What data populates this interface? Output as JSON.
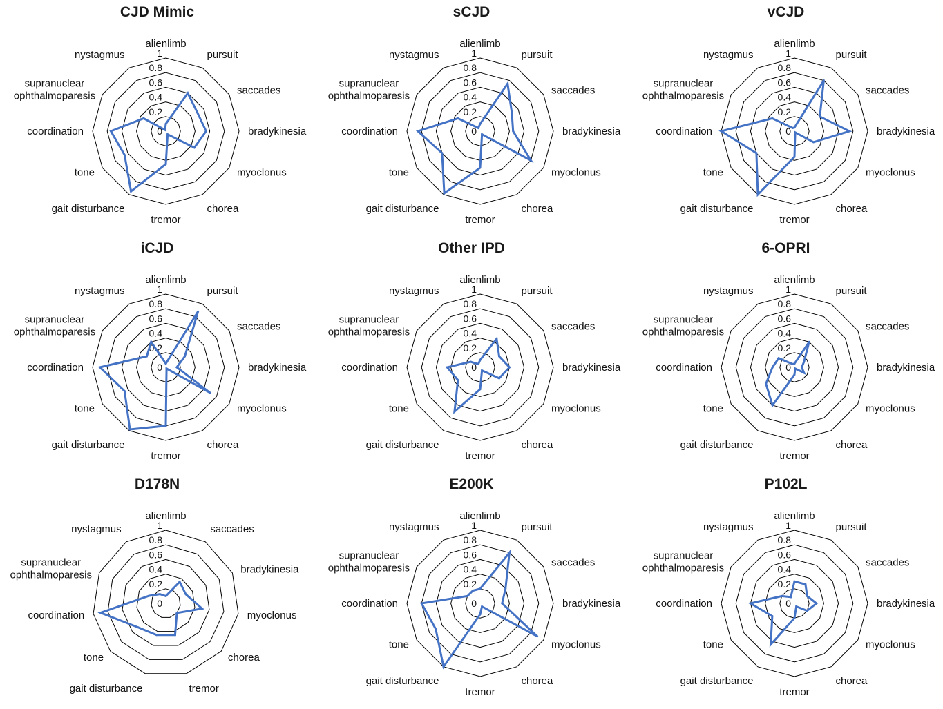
{
  "style": {
    "grid_color": "#000000",
    "series_color": "#4472C4"
  },
  "chart_data": [
    {
      "type": "radar",
      "title": "CJD Mimic",
      "axes": [
        "alienlimb",
        "pursuit",
        "saccades",
        "bradykinesia",
        "myoclonus",
        "chorea",
        "tremor",
        "gait disturbance",
        "tone",
        "coordination",
        "supranuclear ophthalmoparesis",
        "nystagmus"
      ],
      "values": [
        0.1,
        0.6,
        0.5,
        0.55,
        0.45,
        0.05,
        0.45,
        0.95,
        0.65,
        0.75,
        0.35,
        0.02
      ],
      "ticks": [
        "0",
        "0.2",
        "0.4",
        "0.6",
        "0.8",
        "1"
      ],
      "ylim": [
        0,
        1
      ],
      "grid": "12-sided polygons"
    },
    {
      "type": "radar",
      "title": "sCJD",
      "axes": [
        "alienlimb",
        "pursuit",
        "saccades",
        "bradykinesia",
        "myoclonus",
        "chorea",
        "tremor",
        "gait disturbance",
        "tone",
        "coordination",
        "supranuclear ophthalmoparesis",
        "nystagmus"
      ],
      "values": [
        0.1,
        0.75,
        0.5,
        0.45,
        0.8,
        0.05,
        0.5,
        0.98,
        0.6,
        0.85,
        0.35,
        0.05
      ],
      "ticks": [
        "0",
        "0.2",
        "0.4",
        "0.6",
        "0.8",
        "1"
      ],
      "ylim": [
        0,
        1
      ],
      "grid": "12-sided polygons"
    },
    {
      "type": "radar",
      "title": "vCJD",
      "axes": [
        "alienlimb",
        "pursuit",
        "saccades",
        "bradykinesia",
        "myoclonus",
        "chorea",
        "tremor",
        "gait disturbance",
        "tone",
        "coordination",
        "supranuclear ophthalmoparesis",
        "nystagmus"
      ],
      "values": [
        0.05,
        0.8,
        0.4,
        0.75,
        0.3,
        0.02,
        0.35,
        1.0,
        0.6,
        1.0,
        0.35,
        0.05
      ],
      "ticks": [
        "0",
        "0.2",
        "0.4",
        "0.6",
        "0.8",
        "1"
      ],
      "ylim": [
        0,
        1
      ],
      "grid": "12-sided polygons"
    },
    {
      "type": "radar",
      "title": "iCJD",
      "axes": [
        "alienlimb",
        "pursuit",
        "saccades",
        "bradykinesia",
        "myoclonus",
        "chorea",
        "tremor",
        "gait disturbance",
        "tone",
        "coordination",
        "supranuclear ophthalmoparesis",
        "nystagmus"
      ],
      "values": [
        0.05,
        0.88,
        0.3,
        0.15,
        0.7,
        0.02,
        0.8,
        0.98,
        0.65,
        0.9,
        0.3,
        0.4
      ],
      "ticks": [
        "0",
        "0.2",
        "0.4",
        "0.6",
        "0.8",
        "1"
      ],
      "ylim": [
        0,
        1
      ],
      "grid": "12-sided polygons"
    },
    {
      "type": "radar",
      "title": "Other IPD",
      "axes": [
        "alienlimb",
        "pursuit",
        "saccades",
        "bradykinesia",
        "myoclonus",
        "chorea",
        "tremor",
        "gait disturbance",
        "tone",
        "coordination",
        "supranuclear ophthalmoparesis",
        "nystagmus"
      ],
      "values": [
        0.1,
        0.45,
        0.3,
        0.4,
        0.3,
        0.05,
        0.3,
        0.7,
        0.35,
        0.45,
        0.15,
        0.05
      ],
      "ticks": [
        "0",
        "0.2",
        "0.4",
        "0.6",
        "0.8",
        "1"
      ],
      "ylim": [
        0,
        1
      ],
      "grid": "12-sided polygons"
    },
    {
      "type": "radar",
      "title": "6-OPRI",
      "axes": [
        "alienlimb",
        "pursuit",
        "saccades",
        "bradykinesia",
        "myoclonus",
        "chorea",
        "tremor",
        "gait disturbance",
        "tone",
        "coordination",
        "supranuclear ophthalmoparesis",
        "nystagmus"
      ],
      "values": [
        0.05,
        0.4,
        0.15,
        0.1,
        0.15,
        0.02,
        0.1,
        0.6,
        0.45,
        0.3,
        0.25,
        0.05
      ],
      "ticks": [
        "0",
        "0.2",
        "0.4",
        "0.6",
        "0.8",
        "1"
      ],
      "ylim": [
        0,
        1
      ],
      "grid": "12-sided polygons"
    },
    {
      "type": "radar",
      "title": "D178N",
      "axes": [
        "alienlimb",
        "saccades",
        "bradykinesia",
        "myoclonus",
        "chorea",
        "tremor",
        "gait disturbance",
        "tone",
        "coordination",
        "supranuclear ophthalmoparesis",
        "nystagmus"
      ],
      "values": [
        0.1,
        0.35,
        0.3,
        0.5,
        0.2,
        0.45,
        0.45,
        0.5,
        0.9,
        0.25,
        0.15
      ],
      "ticks": [
        "0",
        "0.2",
        "0.4",
        "0.6",
        "0.8",
        "1"
      ],
      "ylim": [
        0,
        1
      ],
      "grid": "11-sided polygons"
    },
    {
      "type": "radar",
      "title": "E200K",
      "axes": [
        "alienlimb",
        "pursuit",
        "saccades",
        "bradykinesia",
        "myoclonus",
        "chorea",
        "tremor",
        "gait disturbance",
        "tone",
        "coordination",
        "supranuclear ophthalmoparesis",
        "nystagmus"
      ],
      "values": [
        0.2,
        0.8,
        0.4,
        0.3,
        0.9,
        0.05,
        0.15,
        1.0,
        0.7,
        0.8,
        0.2,
        0.2
      ],
      "ticks": [
        "0",
        "0.2",
        "0.4",
        "0.6",
        "0.8",
        "1"
      ],
      "ylim": [
        0,
        1
      ],
      "grid": "12-sided polygons"
    },
    {
      "type": "radar",
      "title": "P102L",
      "axes": [
        "alienlimb",
        "pursuit",
        "saccades",
        "bradykinesia",
        "myoclonus",
        "chorea",
        "tremor",
        "gait disturbance",
        "tone",
        "coordination",
        "supranuclear ophthalmoparesis",
        "nystagmus"
      ],
      "values": [
        0.3,
        0.3,
        0.2,
        0.3,
        0.2,
        0.05,
        0.2,
        0.65,
        0.35,
        0.6,
        0.2,
        0.1
      ],
      "ticks": [
        "0",
        "0.2",
        "0.4",
        "0.6",
        "0.8",
        "1"
      ],
      "ylim": [
        0,
        1
      ],
      "grid": "12-sided polygons"
    }
  ]
}
